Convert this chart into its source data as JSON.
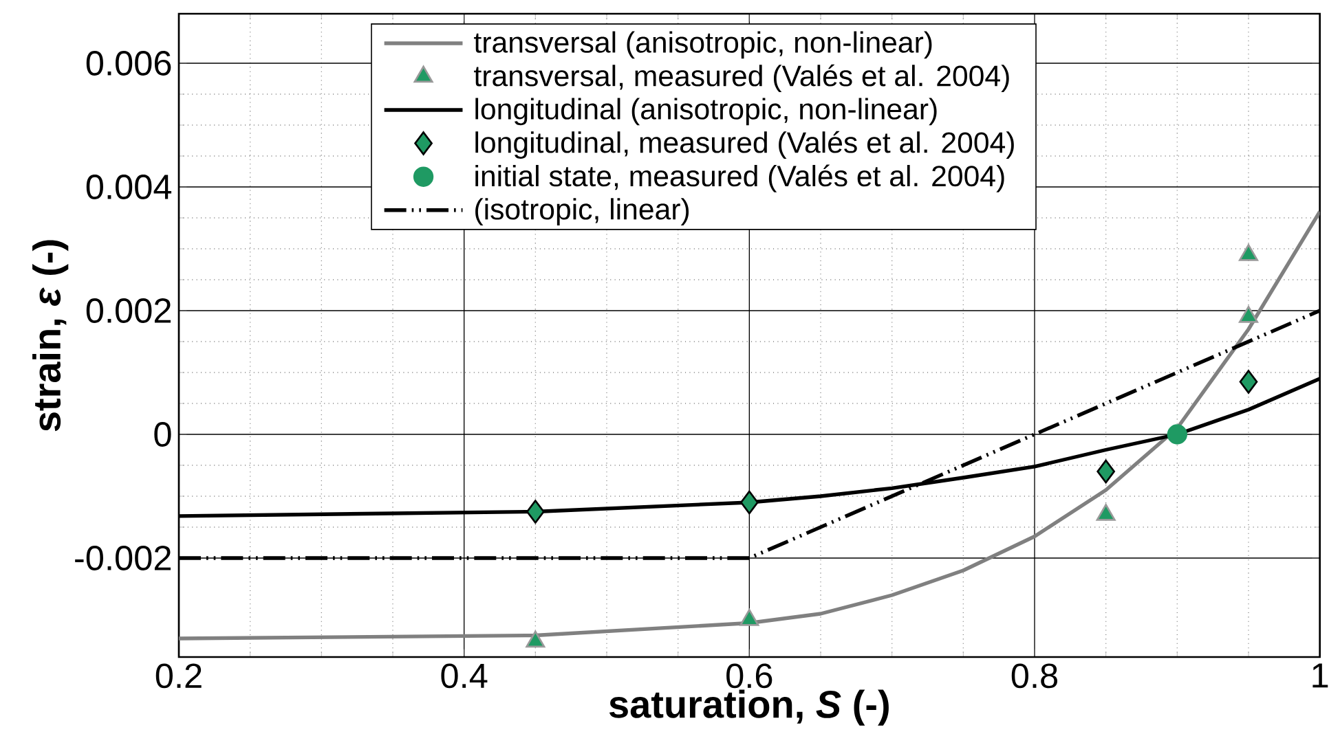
{
  "chart_data": {
    "type": "line",
    "xlabel": "saturation, *S* (-)",
    "ylabel": "strain, *ε* (-)",
    "xlim": [
      0.2,
      1.0
    ],
    "ylim": [
      -0.0036,
      0.0068
    ],
    "xticks": [
      0.2,
      0.4,
      0.6,
      0.8,
      1
    ],
    "yticks": [
      -0.002,
      0,
      0.002,
      0.004,
      0.006
    ],
    "grid": true,
    "legend": "top",
    "series": [
      {
        "name": "transversal (anisotropic, non-linear)",
        "color": "#808080",
        "line_style": "solid",
        "x": [
          0.2,
          0.45,
          0.6,
          0.65,
          0.7,
          0.75,
          0.8,
          0.85,
          0.9,
          0.95,
          1.0
        ],
        "values": [
          -0.0033,
          -0.00325,
          -0.00305,
          -0.0029,
          -0.0026,
          -0.0022,
          -0.00165,
          -0.0009,
          0.0001,
          0.0017,
          0.0036
        ]
      },
      {
        "name": "transversal, measured (Valés et al. 2004)",
        "type": "scatter",
        "marker": "triangle",
        "color": "#1f9a63",
        "x": [
          0.45,
          0.6,
          0.85,
          0.95,
          0.95
        ],
        "values": [
          -0.00335,
          -0.003,
          -0.0013,
          0.0029,
          0.0019
        ]
      },
      {
        "name": "longitudinal (anisotropic, non-linear)",
        "color": "#000000",
        "line_style": "solid",
        "x": [
          0.2,
          0.45,
          0.6,
          0.65,
          0.7,
          0.75,
          0.8,
          0.85,
          0.9,
          0.95,
          1.0
        ],
        "values": [
          -0.00132,
          -0.00125,
          -0.0011,
          -0.001,
          -0.00087,
          -0.0007,
          -0.00052,
          -0.00025,
          0.0,
          0.0004,
          0.0009
        ]
      },
      {
        "name": "longitudinal, measured (Valés et al. 2004)",
        "type": "scatter",
        "marker": "diamond",
        "color": "#1f9a63",
        "x": [
          0.45,
          0.6,
          0.85,
          0.95
        ],
        "values": [
          -0.00125,
          -0.0011,
          -0.0006,
          0.00085
        ]
      },
      {
        "name": "initial state, measured (Valés et al. 2004)",
        "type": "scatter",
        "marker": "circle",
        "color": "#1f9a63",
        "x": [
          0.9
        ],
        "values": [
          0
        ]
      },
      {
        "name": "(isotropic, linear)",
        "color": "#000000",
        "line_style": "dashed",
        "x": [
          0.2,
          0.6,
          1.0
        ],
        "values": [
          -0.002,
          -0.002,
          0.002
        ]
      }
    ]
  }
}
